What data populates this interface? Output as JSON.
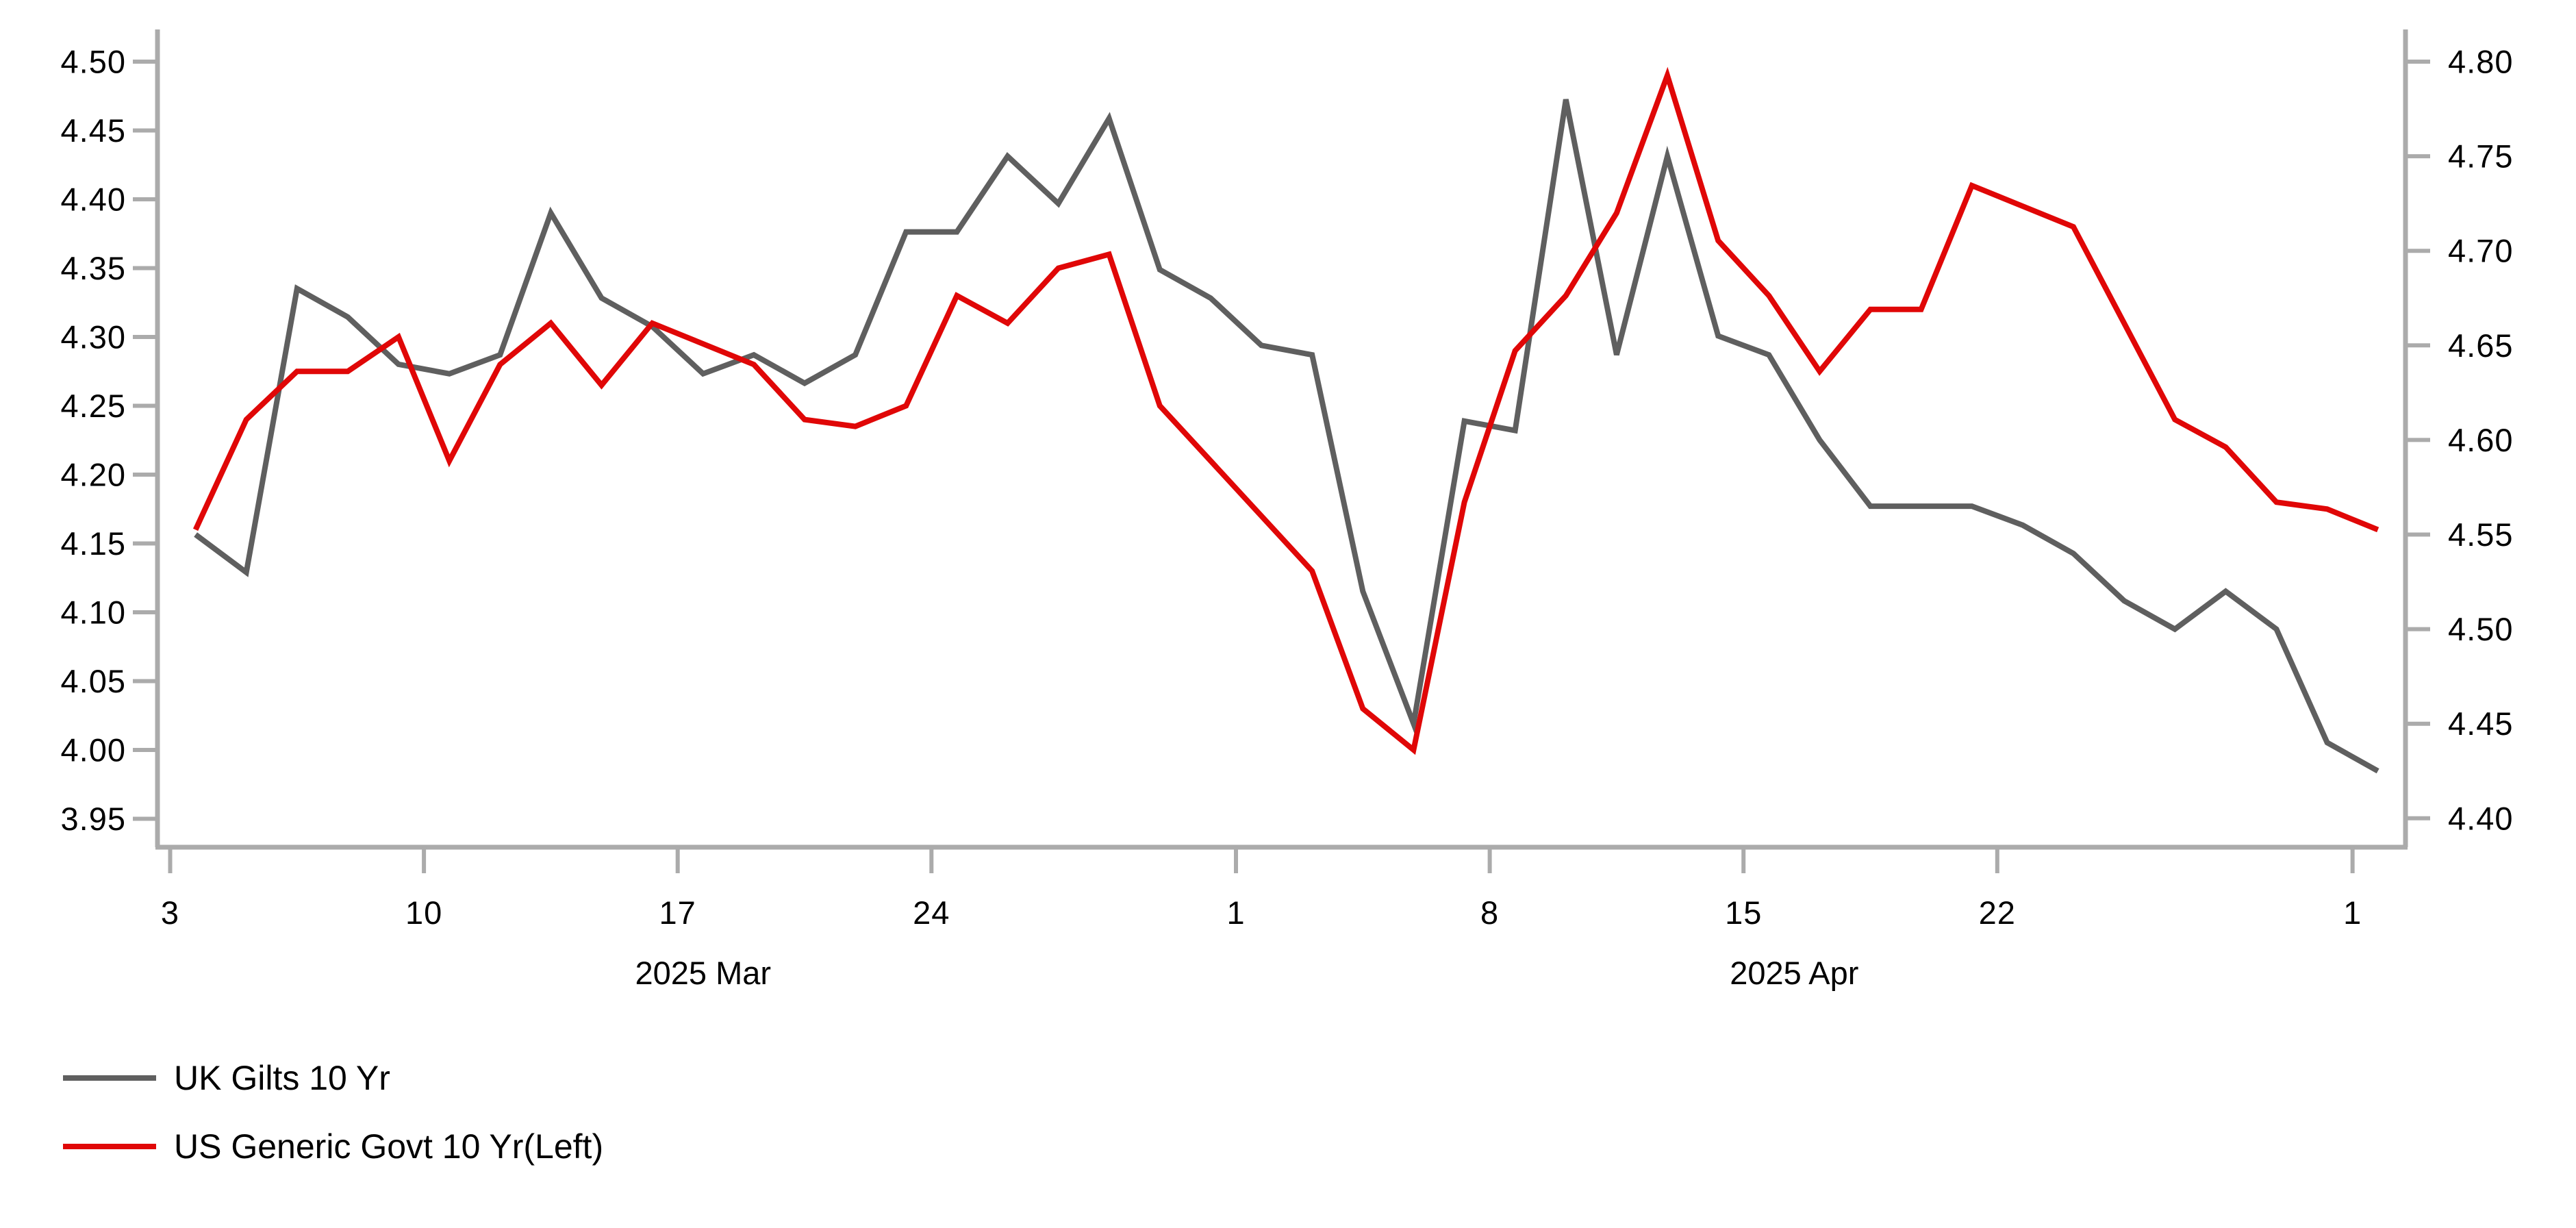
{
  "chart_data": {
    "type": "line",
    "title": "",
    "background": "#ffffff",
    "axis_color": "#ababab",
    "grid": "off",
    "x": {
      "dates": [
        "Mar 3",
        "Mar 4",
        "Mar 5",
        "Mar 6",
        "Mar 7",
        "Mar 10",
        "Mar 11",
        "Mar 12",
        "Mar 13",
        "Mar 14",
        "Mar 17",
        "Mar 18",
        "Mar 19",
        "Mar 20",
        "Mar 21",
        "Mar 24",
        "Mar 25",
        "Mar 26",
        "Mar 27",
        "Mar 28",
        "Mar 31",
        "Apr 1",
        "Apr 2",
        "Apr 3",
        "Apr 4",
        "Apr 7",
        "Apr 8",
        "Apr 9",
        "Apr 10",
        "Apr 11",
        "Apr 14",
        "Apr 15",
        "Apr 16",
        "Apr 17",
        "Apr 18",
        "Apr 21",
        "Apr 22",
        "Apr 23",
        "Apr 24",
        "Apr 25",
        "Apr 28",
        "Apr 29",
        "Apr 30",
        "May 1"
      ],
      "tick_labels": [
        "3",
        "10",
        "17",
        "24",
        "1",
        "8",
        "15",
        "22",
        "1"
      ],
      "tick_slot_indices": [
        0,
        5,
        10,
        15,
        21,
        26,
        31,
        36,
        43
      ],
      "month_labels": [
        {
          "label": "2025 Mar",
          "slot_center": 10.5
        },
        {
          "label": "2025 Apr",
          "slot_center": 32
        }
      ]
    },
    "axes": {
      "left": {
        "tick_labels": [
          "4.50",
          "4.45",
          "4.40",
          "4.35",
          "4.30",
          "4.25",
          "4.20",
          "4.15",
          "4.10",
          "4.05",
          "4.00",
          "3.95"
        ],
        "max": 4.5,
        "min": 3.95,
        "step": 0.05
      },
      "right": {
        "tick_labels": [
          "4.80",
          "4.75",
          "4.70",
          "4.65",
          "4.60",
          "4.55",
          "4.50",
          "4.45",
          "4.40"
        ],
        "max": 4.8,
        "min": 4.4,
        "step": 0.05
      }
    },
    "series": [
      {
        "name": "UK Gilts 10 Yr",
        "axis": "right",
        "color": "#5f5f5f",
        "values": [
          4.55,
          4.53,
          4.68,
          4.665,
          4.64,
          4.635,
          4.645,
          4.72,
          4.675,
          4.66,
          4.635,
          4.645,
          4.63,
          4.645,
          4.71,
          4.71,
          4.75,
          4.725,
          4.77,
          4.69,
          4.675,
          4.65,
          4.645,
          4.52,
          4.45,
          4.61,
          4.605,
          4.78,
          4.645,
          4.75,
          4.655,
          4.645,
          4.6,
          4.565,
          4.565,
          4.565,
          4.555,
          4.54,
          4.515,
          4.5,
          4.52,
          4.5,
          4.44,
          4.425
        ]
      },
      {
        "name": "US Generic Govt 10 Yr(Left)",
        "axis": "left",
        "color": "#e00707",
        "values": [
          4.16,
          4.24,
          4.275,
          4.275,
          4.3,
          4.21,
          4.28,
          4.31,
          4.265,
          4.31,
          4.295,
          4.28,
          4.24,
          4.235,
          4.25,
          4.33,
          4.31,
          4.35,
          4.36,
          4.25,
          4.21,
          4.17,
          4.13,
          4.03,
          4.0,
          4.18,
          4.29,
          4.33,
          4.39,
          4.49,
          4.37,
          4.33,
          4.275,
          4.32,
          4.32,
          4.41,
          4.395,
          4.38,
          4.31,
          4.24,
          4.22,
          4.18,
          4.175,
          4.16
        ]
      }
    ],
    "legend": [
      {
        "label": "UK Gilts 10 Yr",
        "color": "#5f5f5f"
      },
      {
        "label": "US Generic Govt 10 Yr(Left)",
        "color": "#e00707"
      }
    ]
  }
}
